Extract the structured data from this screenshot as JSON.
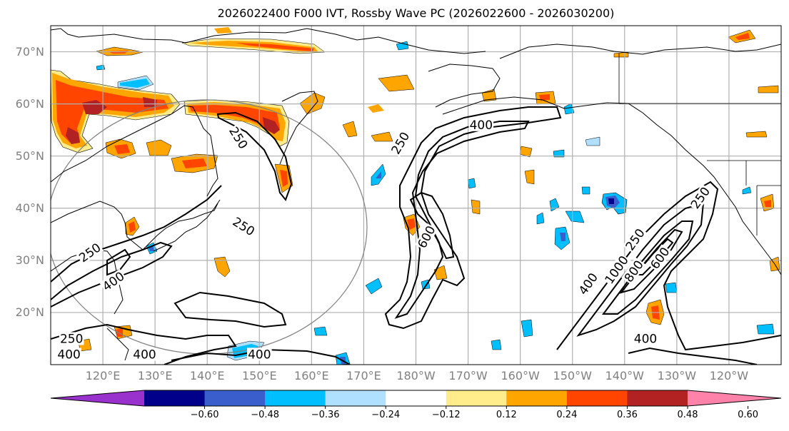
{
  "figure": {
    "title": "2026022400 F000 IVT, Rossby Wave PC (2026022600 - 2026030200)"
  },
  "map": {
    "projection": "PlateCarree",
    "extent": {
      "lon_min": 110,
      "lon_max": 250,
      "lat_min": 10,
      "lat_max": 75
    },
    "lat_ticks": [
      {
        "value": 70,
        "label": "70°N"
      },
      {
        "value": 60,
        "label": "60°N"
      },
      {
        "value": 50,
        "label": "50°N"
      },
      {
        "value": 40,
        "label": "40°N"
      },
      {
        "value": 30,
        "label": "30°N"
      },
      {
        "value": 20,
        "label": "20°N"
      }
    ],
    "lon_ticks": [
      {
        "value": 120,
        "label": "120°E"
      },
      {
        "value": 130,
        "label": "130°E"
      },
      {
        "value": 140,
        "label": "140°E"
      },
      {
        "value": 150,
        "label": "150°E"
      },
      {
        "value": 160,
        "label": "160°E"
      },
      {
        "value": 170,
        "label": "170°E"
      },
      {
        "value": 180,
        "label": "180°W"
      },
      {
        "value": 190,
        "label": "170°W"
      },
      {
        "value": 200,
        "label": "160°W"
      },
      {
        "value": 210,
        "label": "150°W"
      },
      {
        "value": 220,
        "label": "140°W"
      },
      {
        "value": 230,
        "label": "130°W"
      },
      {
        "value": 240,
        "label": "120°W"
      }
    ],
    "ivt_contour_labels": [
      {
        "text": "250",
        "lon": 146,
        "lat": 53.5
      },
      {
        "text": "250",
        "lon": 147,
        "lat": 36.5
      },
      {
        "text": "250",
        "lon": 117.5,
        "lat": 31.5
      },
      {
        "text": "400",
        "lon": 122,
        "lat": 26
      },
      {
        "text": "250",
        "lon": 114,
        "lat": 15
      },
      {
        "text": "400",
        "lon": 113.5,
        "lat": 12
      },
      {
        "text": "400",
        "lon": 128,
        "lat": 12
      },
      {
        "text": "400",
        "lon": 150,
        "lat": 12
      },
      {
        "text": "250",
        "lon": 177,
        "lat": 52.5
      },
      {
        "text": "400",
        "lon": 192.5,
        "lat": 56
      },
      {
        "text": "600",
        "lon": 182,
        "lat": 34.5
      },
      {
        "text": "250",
        "lon": 222,
        "lat": 34
      },
      {
        "text": "400",
        "lon": 213,
        "lat": 25.5
      },
      {
        "text": "1000",
        "lon": 218,
        "lat": 28.5
      },
      {
        "text": "800",
        "lon": 219.5,
        "lat": 29.5
      },
      {
        "text": "600",
        "lon": 224.5,
        "lat": 32
      },
      {
        "text": "250",
        "lon": 234.5,
        "lat": 42
      },
      {
        "text": "400",
        "lon": 224,
        "lat": 15
      }
    ]
  },
  "colorbar": {
    "levels": [
      -0.6,
      -0.48,
      -0.36,
      -0.24,
      -0.12,
      0.12,
      0.24,
      0.36,
      0.48,
      0.6
    ],
    "tick_labels": [
      "−0.60",
      "−0.48",
      "−0.36",
      "−0.24",
      "−0.12",
      "0.12",
      "0.24",
      "0.36",
      "0.48",
      "0.60"
    ],
    "colors": [
      "#9932cc",
      "#00008b",
      "#3a5fcd",
      "#00bfff",
      "#b0e0ff",
      "#ffffff",
      "#ffec8b",
      "#ffa500",
      "#ff4500",
      "#b22222",
      "#ff82ab"
    ],
    "extend": "both"
  },
  "chart_data": {
    "type": "heatmap",
    "title": "2026022400 F000 IVT, Rossby Wave PC (2026022600 - 2026030200)",
    "xlabel": "",
    "ylabel": "",
    "x_ticks": [
      "120°E",
      "130°E",
      "140°E",
      "150°E",
      "160°E",
      "170°E",
      "180°W",
      "170°W",
      "160°W",
      "150°W",
      "140°W",
      "130°W",
      "120°W"
    ],
    "y_ticks": [
      "70°N",
      "60°N",
      "50°N",
      "40°N",
      "30°N",
      "20°N"
    ],
    "xlim": [
      110,
      250
    ],
    "ylim": [
      10,
      75
    ],
    "grid": true,
    "filled_variable": "Rossby Wave PC",
    "contour_variable": "IVT",
    "contour_levels": [
      250,
      400,
      600,
      800,
      1000
    ],
    "colorbar_levels": [
      -0.6,
      -0.48,
      -0.36,
      -0.24,
      -0.12,
      0.12,
      0.24,
      0.36,
      0.48,
      0.6
    ],
    "colorbar_location": "bottom",
    "features": [
      {
        "name": "Siberian positive anomaly band",
        "lon": [
          110,
          155
        ],
        "lat": [
          52,
          64
        ],
        "max_level": 0.48
      },
      {
        "name": "Kamchatka positive anomaly",
        "lon": [
          145,
          155
        ],
        "lat": [
          55,
          61
        ],
        "max_level": 0.48
      },
      {
        "name": "Central Pacific atmospheric river",
        "lon": [
          172,
          192
        ],
        "lat": [
          16,
          58
        ],
        "max_contour": 600
      },
      {
        "name": "Northeast Pacific atmospheric river",
        "lon": [
          208,
          240
        ],
        "lat": [
          14,
          46
        ],
        "max_contour": 1000
      },
      {
        "name": "Negative anomaly near 140°W 40°N",
        "lon": [
          214,
          220
        ],
        "lat": [
          38,
          42
        ],
        "min_level": -0.48
      }
    ]
  }
}
